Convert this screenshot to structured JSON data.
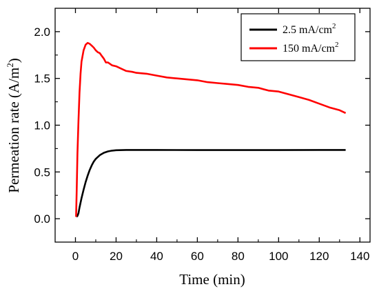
{
  "chart_data": {
    "type": "line",
    "xlabel": "Time (min)",
    "ylabel": "Permeation rate (A/m",
    "ylabel_sup": "2",
    "ylabel_close": ")",
    "xlim": [
      -10,
      145
    ],
    "ylim": [
      -0.25,
      2.25
    ],
    "xticks": [
      0,
      20,
      40,
      60,
      80,
      100,
      120,
      140
    ],
    "yticks": [
      0.0,
      0.5,
      1.0,
      1.5,
      2.0
    ],
    "xtick_labels": [
      "0",
      "20",
      "40",
      "60",
      "80",
      "100",
      "120",
      "140"
    ],
    "ytick_labels": [
      "0.0",
      "0.5",
      "1.0",
      "1.5",
      "2.0"
    ],
    "legend_position": "top-right",
    "series": [
      {
        "name": "2.5 mA/cm",
        "name_sup": "2",
        "color": "#000000",
        "x": [
          0.5,
          1,
          1.5,
          2,
          3,
          4,
          5,
          6,
          7,
          8,
          9,
          10,
          12,
          14,
          16,
          18,
          20,
          25,
          30,
          40,
          60,
          80,
          100,
          120,
          133
        ],
        "y": [
          0.02,
          0.03,
          0.06,
          0.12,
          0.22,
          0.31,
          0.39,
          0.46,
          0.52,
          0.57,
          0.61,
          0.64,
          0.68,
          0.705,
          0.72,
          0.728,
          0.732,
          0.735,
          0.735,
          0.735,
          0.734,
          0.734,
          0.734,
          0.735,
          0.735
        ]
      },
      {
        "name": "150 mA/cm",
        "name_sup": "2",
        "color": "#ff0000",
        "x": [
          0.3,
          0.6,
          1,
          1.5,
          2,
          2.5,
          3,
          4,
          5,
          6,
          7,
          8,
          9,
          10,
          11,
          12,
          13,
          14,
          15,
          16,
          18,
          20,
          22,
          25,
          28,
          30,
          35,
          40,
          45,
          50,
          55,
          60,
          65,
          70,
          75,
          80,
          85,
          90,
          95,
          100,
          105,
          110,
          115,
          120,
          125,
          130,
          133
        ],
        "y": [
          0.02,
          0.3,
          0.7,
          1.05,
          1.35,
          1.55,
          1.68,
          1.8,
          1.86,
          1.88,
          1.87,
          1.85,
          1.83,
          1.8,
          1.78,
          1.77,
          1.74,
          1.71,
          1.67,
          1.67,
          1.64,
          1.63,
          1.61,
          1.58,
          1.57,
          1.56,
          1.55,
          1.53,
          1.51,
          1.5,
          1.49,
          1.48,
          1.46,
          1.45,
          1.44,
          1.43,
          1.41,
          1.4,
          1.37,
          1.36,
          1.33,
          1.3,
          1.27,
          1.23,
          1.19,
          1.16,
          1.13
        ]
      }
    ]
  }
}
